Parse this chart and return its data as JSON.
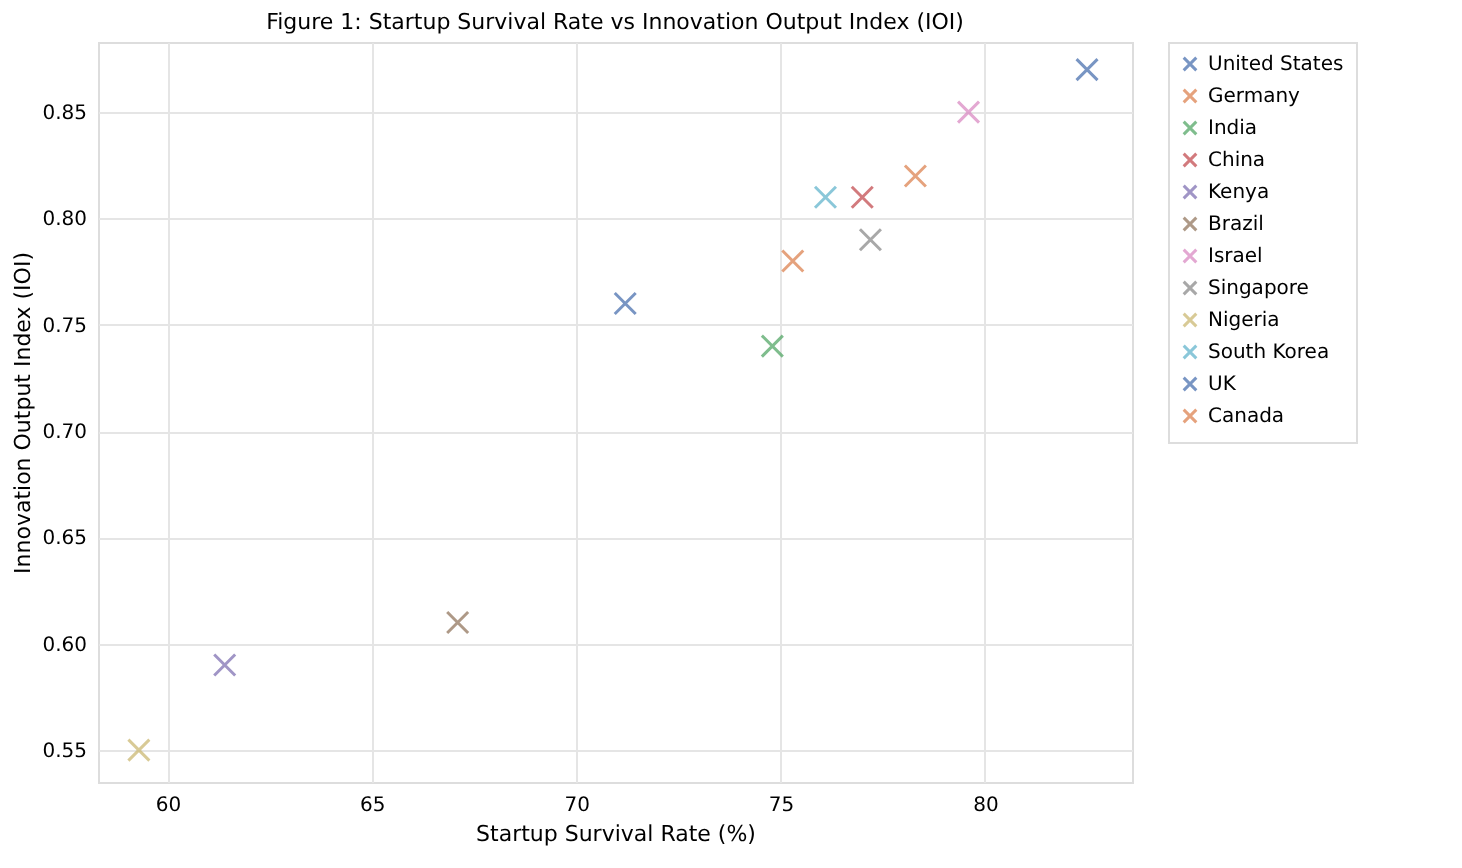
{
  "chart_data": {
    "type": "scatter",
    "title": "Figure 1: Startup Survival Rate vs Innovation Output Index (IOI)",
    "xlabel": "Startup Survival Rate (%)",
    "ylabel": "Innovation Output Index (IOI)",
    "xlim": [
      58.3,
      83.6
    ],
    "ylim": [
      0.535,
      0.883
    ],
    "xticks": [
      60,
      65,
      70,
      75,
      80
    ],
    "yticks": [
      0.55,
      {
        "value": 0.6,
        "label": "0.60"
      },
      0.65,
      {
        "value": 0.7,
        "label": "0.70"
      },
      0.75,
      {
        "value": 0.8,
        "label": "0.80"
      },
      0.85
    ],
    "grid": true,
    "legend": "top right",
    "marker": "cross",
    "series": [
      {
        "name": "United States",
        "color": "#4c72b0",
        "x": [
          82.5
        ],
        "values": [
          0.87
        ]
      },
      {
        "name": "Germany",
        "color": "#dd8452",
        "x": [
          75.3
        ],
        "values": [
          0.78
        ]
      },
      {
        "name": "India",
        "color": "#55a868",
        "x": [
          74.8
        ],
        "values": [
          0.74
        ]
      },
      {
        "name": "China",
        "color": "#c44e52",
        "x": [
          77.0
        ],
        "values": [
          0.81
        ]
      },
      {
        "name": "Kenya",
        "color": "#8172b3",
        "x": [
          61.4
        ],
        "values": [
          0.59
        ]
      },
      {
        "name": "Brazil",
        "color": "#937860",
        "x": [
          67.1
        ],
        "values": [
          0.61
        ]
      },
      {
        "name": "Israel",
        "color": "#da8bc3",
        "x": [
          79.6
        ],
        "values": [
          0.85
        ]
      },
      {
        "name": "Singapore",
        "color": "#8c8c8c",
        "x": [
          77.2
        ],
        "values": [
          0.79
        ]
      },
      {
        "name": "Nigeria",
        "color": "#ccb974",
        "x": [
          59.3
        ],
        "values": [
          0.55
        ]
      },
      {
        "name": "South Korea",
        "color": "#64b5cd",
        "x": [
          76.1
        ],
        "values": [
          0.81
        ]
      },
      {
        "name": "UK",
        "color": "#4c72b0",
        "x": [
          71.2
        ],
        "values": [
          0.76
        ]
      },
      {
        "name": "Canada",
        "color": "#dd8452",
        "x": [
          78.3
        ],
        "values": [
          0.82
        ]
      }
    ]
  }
}
